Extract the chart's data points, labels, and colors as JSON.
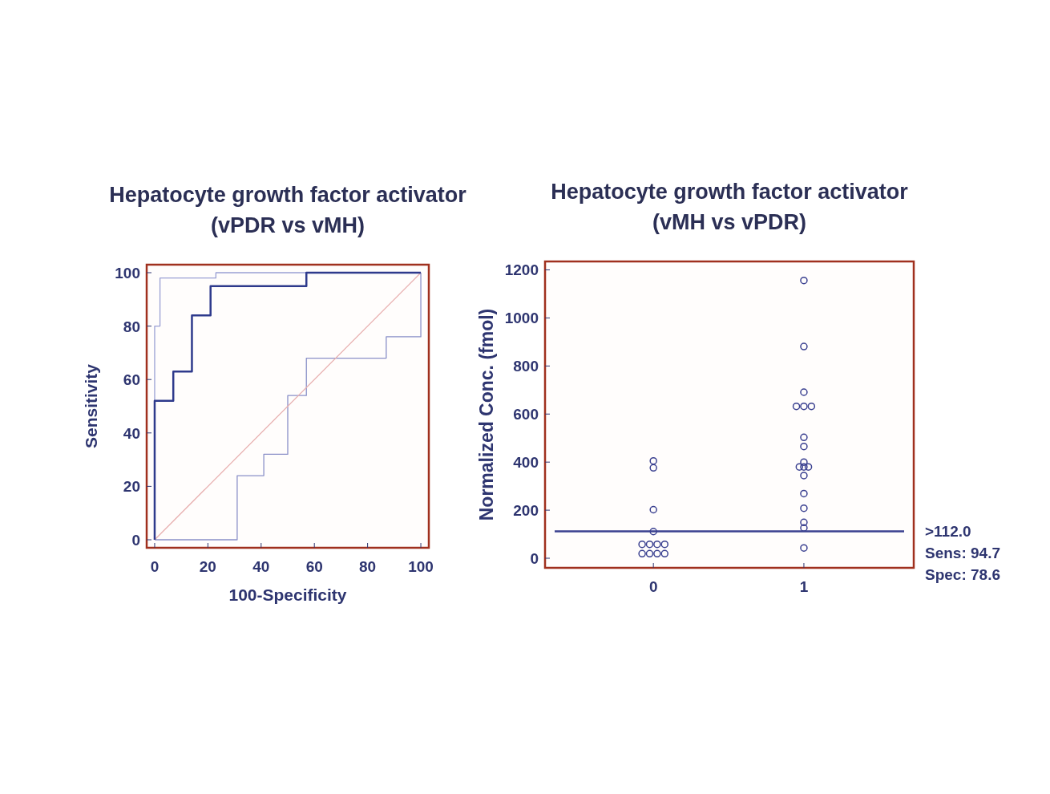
{
  "chart_data": [
    {
      "type": "step",
      "title": "Hepatocyte growth factor activator",
      "subtitle": "(vPDR vs vMH)",
      "xlabel": "100-Specificity",
      "ylabel": "Sensitivity",
      "xlim": [
        -3,
        103
      ],
      "ylim": [
        -3,
        103
      ],
      "xticks": [
        0,
        20,
        40,
        60,
        80,
        100
      ],
      "yticks": [
        0,
        20,
        40,
        60,
        80,
        100
      ],
      "grid": false,
      "marker": "none",
      "series": [
        {
          "color": "#9aa0d4",
          "x": [
            0,
            0,
            2,
            2,
            23,
            23,
            100
          ],
          "values": [
            0,
            80,
            80,
            98,
            98,
            100,
            100
          ]
        },
        {
          "color": "#8a90c8",
          "x": [
            0,
            31,
            31,
            41,
            41,
            50,
            50,
            57,
            57,
            87,
            87,
            100,
            100
          ],
          "values": [
            0,
            0,
            24,
            24,
            32,
            32,
            54,
            54,
            68,
            68,
            76,
            76,
            100
          ]
        },
        {
          "type": "line",
          "color": "#e8b0b0",
          "x": [
            0,
            100
          ],
          "values": [
            0,
            100
          ]
        },
        {
          "color": "#2e3a8c",
          "x": [
            0,
            0,
            7,
            7,
            14,
            14,
            21,
            21,
            57,
            57,
            100
          ],
          "values": [
            0,
            52,
            52,
            63,
            63,
            84,
            84,
            95,
            95,
            100,
            100
          ]
        }
      ]
    },
    {
      "type": "scatter",
      "title": "Hepatocyte growth factor activator",
      "subtitle": "(vMH vs vPDR)",
      "ylabel": "Normalized Conc. (fmol)",
      "xlim": [
        -0.72,
        1.73
      ],
      "xticks": [
        0,
        1
      ],
      "ylim": [
        -40,
        1235
      ],
      "yticks": [
        0,
        200,
        400,
        600,
        800,
        1000,
        1200
      ],
      "grid": false,
      "marker": "circle",
      "series": [
        {
          "color": "#3a4090",
          "x": [
            0,
            0,
            0,
            0,
            -0.075,
            -0.025,
            0.025,
            0.075,
            -0.075,
            -0.025,
            0.025,
            0.075
          ],
          "values": [
            405,
            376,
            202,
            111,
            58,
            58,
            58,
            58,
            19,
            19,
            19,
            19
          ]
        },
        {
          "color": "#3a4090",
          "x": [
            1,
            1,
            1,
            0.95,
            1,
            1.05,
            1,
            1,
            1,
            0.97,
            1,
            1.03,
            1,
            1,
            1,
            1,
            1,
            1
          ],
          "values": [
            1156,
            881,
            691,
            632,
            632,
            632,
            503,
            465,
            400,
            380,
            380,
            380,
            344,
            269,
            208,
            149,
            126,
            43
          ]
        }
      ],
      "ref_lines": [
        {
          "axis": "y",
          "value": 112,
          "label": ">112.0",
          "color": "#3a4090"
        }
      ],
      "annotations": [
        "Sens: 94.7",
        "Spec: 78.6"
      ]
    }
  ]
}
